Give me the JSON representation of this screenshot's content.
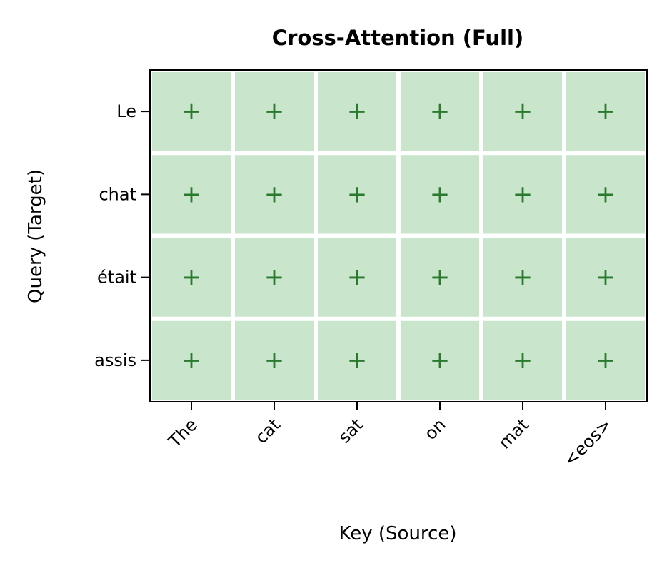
{
  "chart_data": {
    "type": "heatmap",
    "title": "Cross-Attention (Full)",
    "xlabel": "Key (Source)",
    "ylabel": "Query (Target)",
    "x_categories": [
      "The",
      "cat",
      "sat",
      "on",
      "mat",
      "<eos>"
    ],
    "y_categories": [
      "Le",
      "chat",
      "était",
      "assis"
    ],
    "cell_marker": "+",
    "values": [
      [
        1,
        1,
        1,
        1,
        1,
        1
      ],
      [
        1,
        1,
        1,
        1,
        1,
        1
      ],
      [
        1,
        1,
        1,
        1,
        1,
        1
      ],
      [
        1,
        1,
        1,
        1,
        1,
        1
      ]
    ],
    "grid": true,
    "colors": {
      "cell_fill": "#c9e6cc",
      "marker": "#2a7a2e",
      "grid_line": "#ffffff",
      "frame": "#000000"
    }
  }
}
